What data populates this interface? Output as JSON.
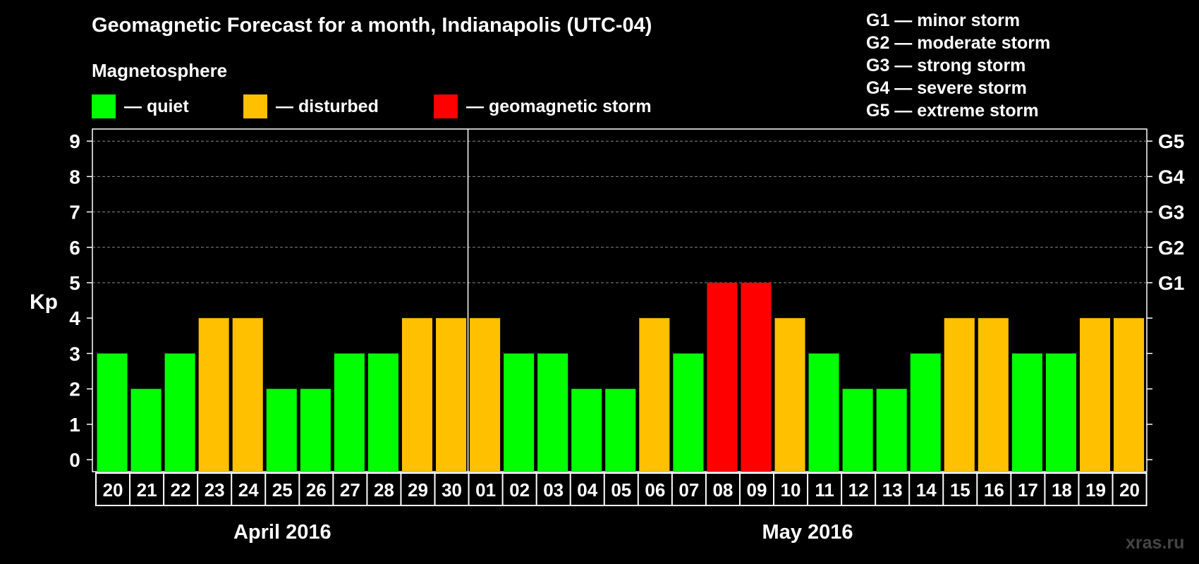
{
  "title": "Geomagnetic Forecast for a month, Indianapolis (UTC-04)",
  "subtitle": "Magnetosphere",
  "legend": [
    {
      "label": "— quiet",
      "color": "#00ff00"
    },
    {
      "label": "— disturbed",
      "color": "#ffc000"
    },
    {
      "label": "— geomagnetic storm",
      "color": "#ff0000"
    }
  ],
  "g_legend": [
    "G1 — minor storm",
    "G2 — moderate storm",
    "G3 — strong storm",
    "G4 — severe storm",
    "G5 — extreme storm"
  ],
  "watermark": "xras.ru",
  "chart_data": {
    "type": "bar",
    "ylabel": "Kp",
    "ylim": [
      0,
      9
    ],
    "yticks": [
      "0",
      "1",
      "2",
      "3",
      "4",
      "5",
      "6",
      "7",
      "8",
      "9"
    ],
    "right_ticks": [
      {
        "value": 5,
        "label": "G1"
      },
      {
        "value": 6,
        "label": "G2"
      },
      {
        "value": 7,
        "label": "G3"
      },
      {
        "value": 8,
        "label": "G4"
      },
      {
        "value": 9,
        "label": "G5"
      }
    ],
    "grid": "dashed horizontal lines at 5–9",
    "categories": [
      "20",
      "21",
      "22",
      "23",
      "24",
      "25",
      "26",
      "27",
      "28",
      "29",
      "30",
      "01",
      "02",
      "03",
      "04",
      "05",
      "06",
      "07",
      "08",
      "09",
      "10",
      "11",
      "12",
      "13",
      "14",
      "15",
      "16",
      "17",
      "18",
      "19",
      "20"
    ],
    "values": [
      3,
      2,
      3,
      4,
      4,
      2,
      2,
      3,
      3,
      4,
      4,
      4,
      3,
      3,
      2,
      2,
      4,
      3,
      5,
      5,
      4,
      3,
      2,
      2,
      3,
      4,
      4,
      3,
      3,
      4,
      4
    ],
    "colors": {
      "quiet": "#00ff00",
      "disturbed": "#ffc000",
      "storm": "#ff0000"
    },
    "months": [
      {
        "label": "April 2016",
        "count": 11
      },
      {
        "label": "May 2016",
        "count": 20
      }
    ]
  }
}
